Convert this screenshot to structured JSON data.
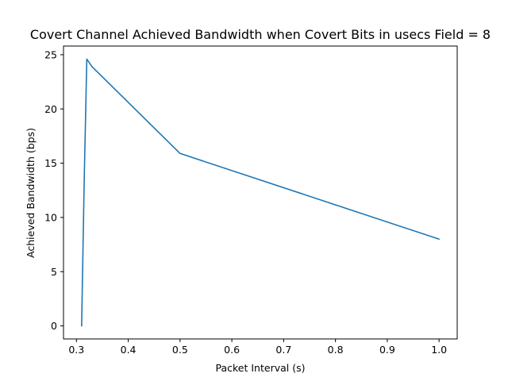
{
  "chart_data": {
    "type": "line",
    "title": "Covert Channel Achieved Bandwidth when Covert Bits in usecs Field = 8",
    "xlabel": "Packet Interval (s)",
    "ylabel": "Achieved Bandwidth (bps)",
    "xlim": [
      0.275,
      1.035
    ],
    "ylim": [
      -1.2,
      25.8
    ],
    "xticks": [
      0.3,
      0.4,
      0.5,
      0.6,
      0.7,
      0.8,
      0.9,
      1.0
    ],
    "xtick_labels": [
      "0.3",
      "0.4",
      "0.5",
      "0.6",
      "0.7",
      "0.8",
      "0.9",
      "1.0"
    ],
    "yticks": [
      0,
      5,
      10,
      15,
      20,
      25
    ],
    "ytick_labels": [
      "0",
      "5",
      "10",
      "15",
      "20",
      "25"
    ],
    "grid": false,
    "series": [
      {
        "color": "#1f77b4",
        "x": [
          0.31,
          0.315,
          0.32,
          0.33,
          0.5,
          1.0
        ],
        "y": [
          0.0,
          13.5,
          24.6,
          23.9,
          15.9,
          8.0
        ]
      }
    ]
  }
}
